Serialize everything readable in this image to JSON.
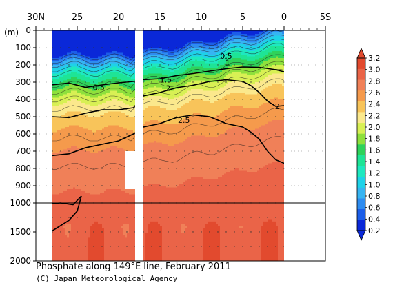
{
  "title": "Phosphate along 149°E line, February 2011",
  "credit": "(C) Japan Meteorological Agency",
  "chart_data": {
    "type": "heatmap",
    "title": "Phosphate along 149°E line, February 2011",
    "x_ticks": [
      "30N",
      "25",
      "20",
      "15",
      "10",
      "5",
      "0",
      "5S"
    ],
    "x_tick_values": [
      30,
      25,
      20,
      15,
      10,
      5,
      0,
      -5
    ],
    "xlim": [
      30,
      -5
    ],
    "y_unit": "(m)",
    "y_ticks_upper": [
      0,
      100,
      200,
      300,
      400,
      500,
      600,
      700,
      800,
      900,
      1000
    ],
    "y_ticks_lower": [
      1500,
      2000
    ],
    "ylim": [
      2000,
      0
    ],
    "depth_axis_break": 1000,
    "data_gap_lat": [
      18.0,
      17.0
    ],
    "data_extent_lat": [
      28.0,
      0.0
    ],
    "no_data_box": {
      "lat": [
        19.2,
        18.0
      ],
      "depth": [
        700,
        920
      ]
    },
    "colorbar": {
      "levels": [
        0.2,
        0.4,
        0.6,
        0.8,
        1.0,
        1.2,
        1.4,
        1.6,
        1.8,
        2.0,
        2.2,
        2.4,
        2.6,
        2.8,
        3.0,
        3.2
      ],
      "labels": [
        "0.2",
        "0.4",
        "0.6",
        "0.8",
        "1.0",
        "1.2",
        "1.4",
        "1.6",
        "1.8",
        "2.0",
        "2.2",
        "2.4",
        "2.6",
        "2.8",
        "3.0",
        "3.2"
      ],
      "colors": [
        "#0a28d8",
        "#1c5ee8",
        "#2e8cf0",
        "#36b4f2",
        "#1ed2e8",
        "#1ee8c0",
        "#1ee496",
        "#2ed25a",
        "#8ee03c",
        "#d8f054",
        "#fbe88c",
        "#f8c45a",
        "#f59a4c",
        "#f08058",
        "#ea6448",
        "#e24a2e"
      ]
    },
    "contour_labels": [
      {
        "text": "0.5",
        "lat": 7.0,
        "depth": 148
      },
      {
        "text": "1",
        "lat": 6.8,
        "depth": 186
      },
      {
        "text": "1.5",
        "lat": 14.3,
        "depth": 286
      },
      {
        "text": "2",
        "lat": 14.0,
        "depth": 333
      },
      {
        "text": "2.5",
        "lat": 12.1,
        "depth": 520
      },
      {
        "text": "0.5",
        "lat": 22.4,
        "depth": 330
      },
      {
        "text": "2",
        "lat": 0.8,
        "depth": 440
      }
    ],
    "bold_contours": [
      {
        "value": 1.5,
        "points": [
          [
            28,
            315
          ],
          [
            26,
            305
          ],
          [
            24,
            330
          ],
          [
            22,
            316
          ],
          [
            20,
            304
          ],
          [
            18.2,
            296
          ],
          [
            17,
            286
          ],
          [
            15,
            280
          ],
          [
            13,
            262
          ],
          [
            11,
            250
          ],
          [
            9,
            236
          ],
          [
            7,
            222
          ],
          [
            5,
            212
          ],
          [
            3,
            214
          ],
          [
            1,
            228
          ],
          [
            0,
            240
          ]
        ]
      },
      {
        "value": 2.0,
        "points": [
          [
            28,
            500
          ],
          [
            26,
            505
          ],
          [
            24,
            480
          ],
          [
            22,
            460
          ],
          [
            20,
            460
          ],
          [
            18.2,
            448
          ],
          [
            17,
            380
          ],
          [
            15,
            360
          ],
          [
            13,
            332
          ],
          [
            11,
            318
          ],
          [
            9,
            296
          ],
          [
            7,
            286
          ],
          [
            5,
            296
          ],
          [
            4,
            320
          ],
          [
            3,
            360
          ],
          [
            2,
            410
          ],
          [
            1,
            440
          ],
          [
            0,
            436
          ]
        ]
      },
      {
        "value": 2.5,
        "points": [
          [
            28,
            725
          ],
          [
            26,
            715
          ],
          [
            24,
            680
          ],
          [
            22,
            660
          ],
          [
            20,
            640
          ],
          [
            18.2,
            600
          ],
          [
            17,
            560
          ],
          [
            15,
            540
          ],
          [
            13,
            505
          ],
          [
            11,
            490
          ],
          [
            9,
            500
          ],
          [
            7,
            540
          ],
          [
            5,
            560
          ],
          [
            4,
            590
          ],
          [
            3,
            630
          ],
          [
            2,
            700
          ],
          [
            1,
            750
          ],
          [
            0,
            770
          ]
        ]
      },
      {
        "value": 3.0,
        "points": [
          [
            28,
            1480
          ],
          [
            26,
            1300
          ],
          [
            25,
            1140
          ],
          [
            24.5,
            960
          ],
          [
            25.5,
            1030
          ],
          [
            27,
            1000
          ],
          [
            28,
            1010
          ]
        ]
      }
    ]
  }
}
